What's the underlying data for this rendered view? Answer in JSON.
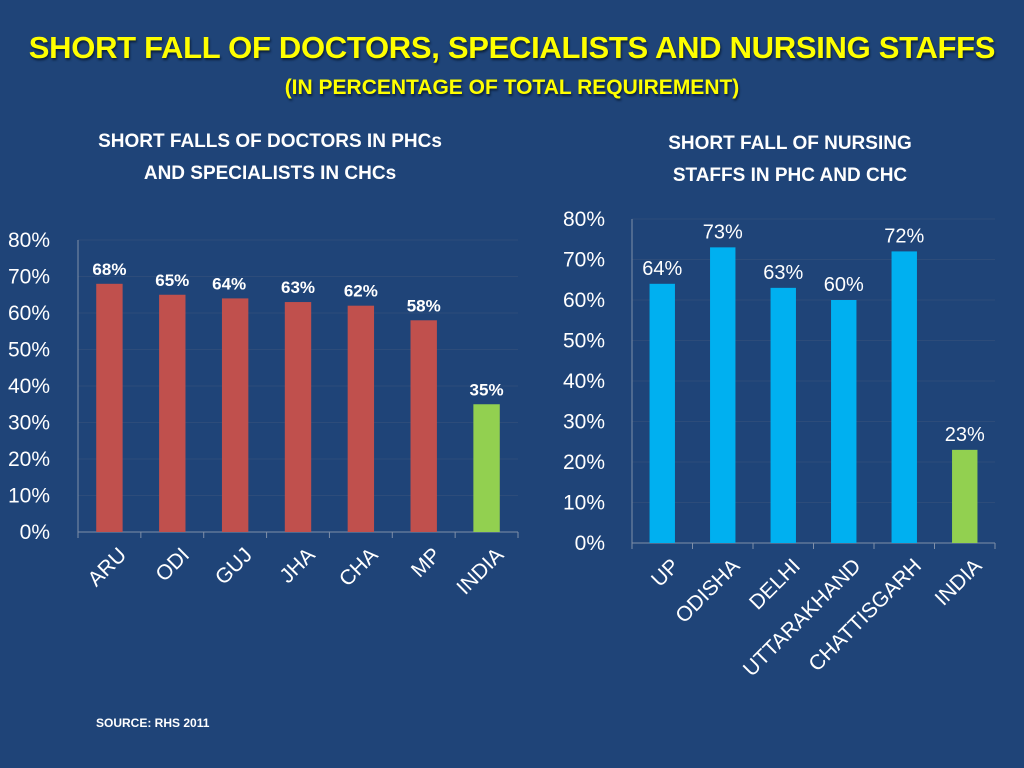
{
  "header": {
    "title": "SHORT FALL OF DOCTORS, SPECIALISTS AND NURSING STAFFS",
    "subtitle": "(IN PERCENTAGE OF TOTAL REQUIREMENT)"
  },
  "source": "SOURCE: RHS 2011",
  "colors": {
    "background": "#1f4478",
    "title": "#ffff00",
    "bar_red": "#c0504d",
    "bar_blue": "#00b0f0",
    "bar_green": "#92d050",
    "gridline": "#2d4c7a",
    "text": "#ffffff"
  },
  "chart_data": [
    {
      "type": "bar",
      "title_lines": [
        "SHORT FALLS OF DOCTORS IN PHCs",
        "AND SPECIALISTS IN CHCs"
      ],
      "categories": [
        "ARU",
        "ODI",
        "GUJ",
        "JHA",
        "CHA",
        "MP",
        "INDIA"
      ],
      "values": [
        68,
        65,
        64,
        63,
        62,
        58,
        35
      ],
      "data_labels": [
        "68%",
        "65%",
        "64%",
        "63%",
        "62%",
        "58%",
        "35%"
      ],
      "bar_colors": [
        "#c0504d",
        "#c0504d",
        "#c0504d",
        "#c0504d",
        "#c0504d",
        "#c0504d",
        "#92d050"
      ],
      "yticks": [
        "0%",
        "10%",
        "20%",
        "30%",
        "40%",
        "50%",
        "60%",
        "70%",
        "80%"
      ],
      "ylim": [
        0,
        80
      ],
      "grid": true,
      "xlabel": "",
      "ylabel": ""
    },
    {
      "type": "bar",
      "title_lines": [
        "SHORT FALL OF NURSING",
        "STAFFS  IN PHC AND CHC"
      ],
      "categories": [
        "UP",
        "ODISHA",
        "DELHI",
        "UTTARAKHAND",
        "CHATTISGARH",
        "INDIA"
      ],
      "values": [
        64,
        73,
        63,
        60,
        72,
        23
      ],
      "data_labels": [
        "64%",
        "73%",
        "63%",
        "60%",
        "72%",
        "23%"
      ],
      "bar_colors": [
        "#00b0f0",
        "#00b0f0",
        "#00b0f0",
        "#00b0f0",
        "#00b0f0",
        "#92d050"
      ],
      "yticks": [
        "0%",
        "10%",
        "20%",
        "30%",
        "40%",
        "50%",
        "60%",
        "70%",
        "80%"
      ],
      "ylim": [
        0,
        80
      ],
      "grid": true,
      "xlabel": "",
      "ylabel": ""
    }
  ]
}
